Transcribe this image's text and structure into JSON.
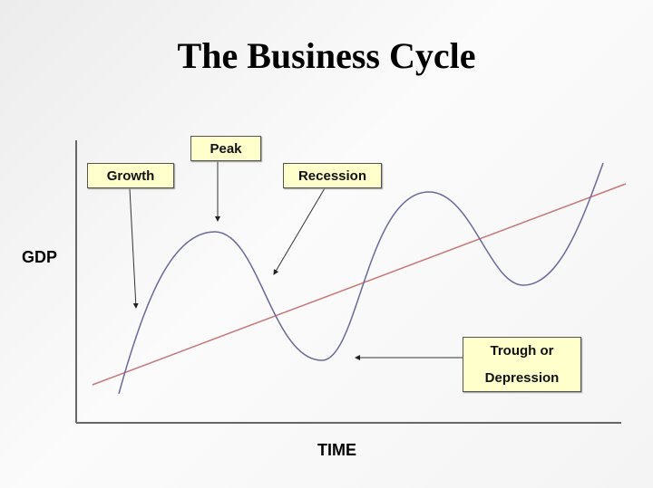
{
  "title": "The Business Cycle",
  "axes": {
    "y_label": "GDP",
    "x_label": "TIME"
  },
  "labels": {
    "growth": "Growth",
    "peak": "Peak",
    "recession": "Recession",
    "trough_line1": "Trough or",
    "trough_line2": "Depression"
  },
  "colors": {
    "cycle_curve": "#6a6a9a",
    "trend_line": "#c87878",
    "label_fill": "#ffffcc"
  }
}
